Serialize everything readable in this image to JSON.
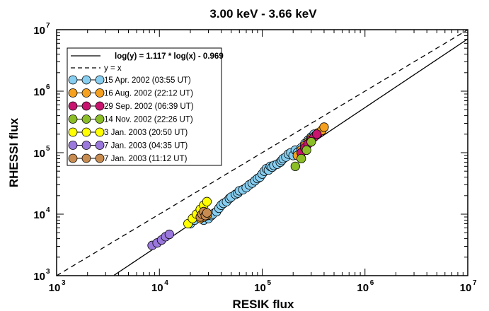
{
  "chart_data": {
    "type": "scatter",
    "title": "3.00 keV - 3.66 keV",
    "xlabel": "RESIK flux",
    "ylabel": "RHESSI flux",
    "xscale": "log",
    "yscale": "log",
    "xlim": [
      1000,
      10000000
    ],
    "ylim": [
      1000,
      10000000
    ],
    "xticks": [
      {
        "base": "10",
        "exp": "3",
        "value": 1000
      },
      {
        "base": "10",
        "exp": "4",
        "value": 10000
      },
      {
        "base": "10",
        "exp": "5",
        "value": 100000
      },
      {
        "base": "10",
        "exp": "6",
        "value": 1000000
      },
      {
        "base": "10",
        "exp": "7",
        "value": 10000000
      }
    ],
    "yticks": [
      {
        "base": "10",
        "exp": "3",
        "value": 1000
      },
      {
        "base": "10",
        "exp": "4",
        "value": 10000
      },
      {
        "base": "10",
        "exp": "5",
        "value": 100000
      },
      {
        "base": "10",
        "exp": "6",
        "value": 1000000
      },
      {
        "base": "10",
        "exp": "7",
        "value": 10000000
      }
    ],
    "legend_position": "top-left",
    "lines": [
      {
        "label": "log(y) = 1.117 * log(x) - 0.969",
        "style": "solid",
        "slope": 1.117,
        "intercept": -0.969
      },
      {
        "label": "y = x",
        "style": "dashed",
        "slope": 1,
        "intercept": 0
      }
    ],
    "series": [
      {
        "name": "15 Apr. 2002  (03:55 UT)",
        "color": "#87cef0",
        "points": [
          [
            20000,
            7000
          ],
          [
            22000,
            8000
          ],
          [
            24000,
            9000
          ],
          [
            27000,
            8000
          ],
          [
            30000,
            8500
          ],
          [
            32000,
            9500
          ],
          [
            33000,
            10000
          ],
          [
            36000,
            11000
          ],
          [
            38000,
            12500
          ],
          [
            40000,
            14000
          ],
          [
            42000,
            15000
          ],
          [
            45000,
            16000
          ],
          [
            48000,
            18000
          ],
          [
            50000,
            19000
          ],
          [
            55000,
            21000
          ],
          [
            58000,
            22000
          ],
          [
            60000,
            24000
          ],
          [
            65000,
            25000
          ],
          [
            70000,
            27000
          ],
          [
            75000,
            30000
          ],
          [
            80000,
            32000
          ],
          [
            85000,
            35000
          ],
          [
            90000,
            38000
          ],
          [
            95000,
            40000
          ],
          [
            100000,
            45000
          ],
          [
            105000,
            50000
          ],
          [
            110000,
            55000
          ],
          [
            115000,
            52000
          ],
          [
            120000,
            60000
          ],
          [
            125000,
            58000
          ],
          [
            130000,
            62000
          ],
          [
            140000,
            65000
          ],
          [
            150000,
            70000
          ],
          [
            155000,
            75000
          ],
          [
            160000,
            80000
          ],
          [
            170000,
            85000
          ],
          [
            180000,
            95000
          ],
          [
            190000,
            100000
          ],
          [
            200000,
            90000
          ],
          [
            210000,
            110000
          ],
          [
            220000,
            100000
          ],
          [
            240000,
            120000
          ],
          [
            260000,
            140000
          ],
          [
            280000,
            160000
          ],
          [
            300000,
            180000
          ],
          [
            320000,
            200000
          ]
        ]
      },
      {
        "name": "16 Aug. 2002 (22:12 UT)",
        "color": "#f5a01e",
        "points": [
          [
            25000,
            8500
          ],
          [
            27000,
            9000
          ],
          [
            29000,
            9500
          ],
          [
            220000,
            90000
          ],
          [
            240000,
            110000
          ],
          [
            260000,
            130000
          ],
          [
            280000,
            150000
          ],
          [
            300000,
            170000
          ],
          [
            330000,
            190000
          ],
          [
            350000,
            210000
          ],
          [
            380000,
            230000
          ],
          [
            400000,
            260000
          ]
        ]
      },
      {
        "name": "29 Sep. 2002 (06:39 UT)",
        "color": "#c8146e",
        "points": [
          [
            240000,
            100000
          ],
          [
            260000,
            120000
          ],
          [
            280000,
            140000
          ],
          [
            300000,
            160000
          ],
          [
            320000,
            180000
          ],
          [
            340000,
            200000
          ]
        ]
      },
      {
        "name": "14 Nov. 2002 (22:26 UT)",
        "color": "#8cbe28",
        "points": [
          [
            210000,
            60000
          ],
          [
            240000,
            80000
          ],
          [
            270000,
            110000
          ],
          [
            300000,
            150000
          ]
        ]
      },
      {
        "name": "3 Jan. 2003 (20:50 UT)",
        "color": "#ffff00",
        "points": [
          [
            19000,
            7000
          ],
          [
            21000,
            8500
          ],
          [
            23000,
            10000
          ],
          [
            25000,
            12000
          ],
          [
            27000,
            14000
          ],
          [
            29000,
            16000
          ]
        ]
      },
      {
        "name": "7 Jan. 2003 (04:35 UT)",
        "color": "#9a78dc",
        "points": [
          [
            8500,
            3100
          ],
          [
            9500,
            3400
          ],
          [
            10500,
            3800
          ],
          [
            11500,
            4300
          ],
          [
            12500,
            4700
          ]
        ]
      },
      {
        "name": "7 Jan. 2003 (11:12 UT)",
        "color": "#c88c50",
        "points": [
          [
            25000,
            9000
          ],
          [
            26000,
            10000
          ],
          [
            27000,
            11000
          ],
          [
            28000,
            9500
          ],
          [
            29000,
            10500
          ]
        ]
      }
    ]
  }
}
